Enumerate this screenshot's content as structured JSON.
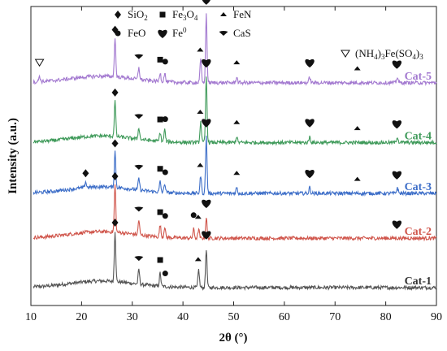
{
  "chart_data": {
    "type": "line",
    "xlabel": "2θ (°)",
    "ylabel": "Intensity (a.u.)",
    "xlim": [
      10,
      90
    ],
    "xticks": [
      "10",
      "20",
      "30",
      "40",
      "50",
      "60",
      "70",
      "80",
      "90"
    ],
    "grid": false,
    "legend_position": "top",
    "legend": [
      {
        "marker": "diamond",
        "label": "SiO2",
        "base": "SiO",
        "sub": "2"
      },
      {
        "marker": "square",
        "label": "Fe3O4",
        "base": "Fe",
        "sub": "3",
        "mid": "O",
        "sub2": "4"
      },
      {
        "marker": "triangle-up",
        "label": "FeN",
        "base": "FeN"
      },
      {
        "marker": "circle",
        "label": "FeO",
        "base": "FeO"
      },
      {
        "marker": "heart",
        "label": "Fe0",
        "base": "Fe",
        "sup": "0"
      },
      {
        "marker": "triangle-down",
        "label": "CaS",
        "base": "CaS"
      },
      {
        "marker": "open-triangle-down",
        "label": "(NH4)3Fe(SO4)3",
        "base": "(NH",
        "sub": "4",
        "mid": ")",
        "sub2": "3",
        "tail": "Fe(SO",
        "sub3": "4",
        "tail2": ")",
        "sub4": "3"
      }
    ],
    "series": [
      {
        "name": "Cat-1",
        "color": "#555555",
        "baseline": 0.06,
        "peaks": [
          [
            26.6,
            0.17
          ],
          [
            31.3,
            0.05
          ],
          [
            35.5,
            0.045
          ],
          [
            43.1,
            0.06
          ],
          [
            44.6,
            0.13
          ]
        ],
        "markers": [
          [
            "diamond",
            26.6
          ],
          [
            "triangle-down",
            31.3
          ],
          [
            "square",
            35.5
          ],
          [
            "circle",
            36.5
          ],
          [
            "triangle-up",
            43.0
          ],
          [
            "heart",
            44.6
          ]
        ]
      },
      {
        "name": "Cat-2",
        "color": "#d0564c",
        "baseline": 0.225,
        "peaks": [
          [
            26.6,
            0.16
          ],
          [
            31.3,
            0.05
          ],
          [
            35.5,
            0.04
          ],
          [
            36.4,
            0.035
          ],
          [
            42.1,
            0.03
          ],
          [
            43.1,
            0.03
          ],
          [
            44.6,
            0.07
          ]
        ],
        "markers": [
          [
            "diamond",
            26.6
          ],
          [
            "triangle-down",
            31.3
          ],
          [
            "square",
            35.5
          ],
          [
            "circle",
            36.5
          ],
          [
            "circle",
            42.1
          ],
          [
            "triangle-up",
            43.0
          ],
          [
            "heart",
            44.6
          ],
          [
            "heart",
            82.2
          ]
        ]
      },
      {
        "name": "Cat-3",
        "color": "#3d6ec8",
        "baseline": 0.375,
        "peaks": [
          [
            20.8,
            0.02
          ],
          [
            26.6,
            0.12
          ],
          [
            31.3,
            0.04
          ],
          [
            35.5,
            0.035
          ],
          [
            36.4,
            0.03
          ],
          [
            43.5,
            0.06
          ],
          [
            44.6,
            0.19
          ],
          [
            50.6,
            0.02
          ],
          [
            65.0,
            0.02
          ],
          [
            82.3,
            0.02
          ]
        ],
        "markers": [
          [
            "diamond",
            20.8
          ],
          [
            "diamond",
            26.6
          ],
          [
            "triangle-down",
            31.3
          ],
          [
            "square",
            35.5
          ],
          [
            "circle",
            36.5
          ],
          [
            "triangle-up",
            43.4
          ],
          [
            "heart",
            44.6
          ],
          [
            "triangle-up",
            50.6
          ],
          [
            "heart",
            65.0
          ],
          [
            "triangle-up",
            74.4
          ],
          [
            "heart",
            82.2
          ]
        ]
      },
      {
        "name": "Cat-4",
        "color": "#3f9a5a",
        "baseline": 0.545,
        "peaks": [
          [
            26.6,
            0.12
          ],
          [
            31.3,
            0.04
          ],
          [
            35.5,
            0.03
          ],
          [
            36.4,
            0.04
          ],
          [
            43.5,
            0.07
          ],
          [
            44.6,
            0.22
          ],
          [
            50.6,
            0.02
          ],
          [
            65.0,
            0.02
          ],
          [
            82.3,
            0.02
          ]
        ],
        "markers": [
          [
            "diamond",
            26.6
          ],
          [
            "triangle-down",
            31.3
          ],
          [
            "square",
            35.5
          ],
          [
            "circle",
            36.5
          ],
          [
            "triangle-up",
            43.4
          ],
          [
            "heart",
            44.6
          ],
          [
            "triangle-up",
            50.6
          ],
          [
            "heart",
            65.0
          ],
          [
            "triangle-up",
            74.4
          ],
          [
            "heart",
            82.2
          ]
        ]
      },
      {
        "name": "Cat-5",
        "color": "#a379d0",
        "baseline": 0.745,
        "peaks": [
          [
            11.7,
            0.02
          ],
          [
            26.6,
            0.13
          ],
          [
            31.3,
            0.04
          ],
          [
            35.5,
            0.03
          ],
          [
            36.4,
            0.03
          ],
          [
            43.5,
            0.08
          ],
          [
            44.6,
            0.23
          ],
          [
            50.6,
            0.02
          ],
          [
            65.0,
            0.02
          ],
          [
            82.3,
            0.02
          ]
        ],
        "markers": [
          [
            "open-triangle-down",
            11.7
          ],
          [
            "diamond",
            26.6
          ],
          [
            "triangle-down",
            31.3
          ],
          [
            "square",
            35.5
          ],
          [
            "circle",
            36.5
          ],
          [
            "triangle-up",
            43.4
          ],
          [
            "heart",
            44.6
          ],
          [
            "triangle-up",
            50.6
          ],
          [
            "heart",
            65.0
          ],
          [
            "triangle-up",
            74.4
          ],
          [
            "heart",
            82.2
          ]
        ]
      }
    ]
  }
}
